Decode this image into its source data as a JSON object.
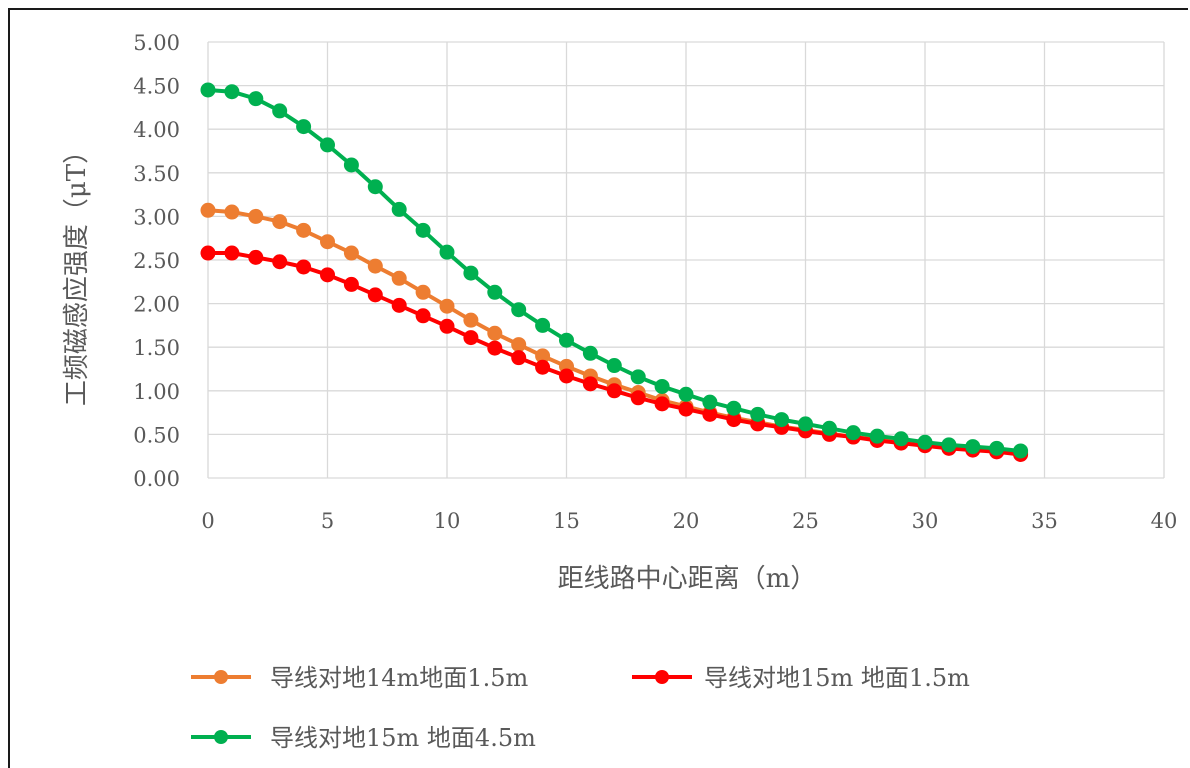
{
  "chart_data": {
    "type": "line",
    "title": "",
    "xlabel": "距线路中心距离（m）",
    "ylabel": "工频磁感应强度（μT）",
    "xlim": [
      0,
      40
    ],
    "ylim": [
      0,
      5
    ],
    "xticks": [
      "0",
      "5",
      "10",
      "15",
      "20",
      "25",
      "30",
      "35",
      "40"
    ],
    "yticks": [
      "0.00",
      "0.50",
      "1.00",
      "1.50",
      "2.00",
      "2.50",
      "3.00",
      "3.50",
      "4.00",
      "4.50",
      "5.00"
    ],
    "grid": true,
    "legend_position": "bottom",
    "x": [
      0,
      1,
      2,
      3,
      4,
      5,
      6,
      7,
      8,
      9,
      10,
      11,
      12,
      13,
      14,
      15,
      16,
      17,
      18,
      19,
      20,
      21,
      22,
      23,
      24,
      25,
      26,
      27,
      28,
      29,
      30,
      31,
      32,
      33,
      34
    ],
    "series": [
      {
        "name": "导线对地14m地面1.5m",
        "color": "#ED7D31",
        "values": [
          3.07,
          3.05,
          3.0,
          2.94,
          2.84,
          2.71,
          2.58,
          2.43,
          2.29,
          2.13,
          1.97,
          1.81,
          1.66,
          1.53,
          1.4,
          1.28,
          1.17,
          1.07,
          0.98,
          0.89,
          0.82,
          0.75,
          0.69,
          0.64,
          0.59,
          0.55,
          0.51,
          0.47,
          0.44,
          0.41,
          0.38,
          0.35,
          0.33,
          0.31,
          0.29
        ]
      },
      {
        "name": "导线对地15m 地面1.5m",
        "color": "#FF0000",
        "values": [
          2.58,
          2.58,
          2.53,
          2.48,
          2.42,
          2.33,
          2.22,
          2.1,
          1.98,
          1.86,
          1.74,
          1.61,
          1.49,
          1.38,
          1.27,
          1.17,
          1.08,
          1.0,
          0.92,
          0.85,
          0.79,
          0.73,
          0.67,
          0.62,
          0.58,
          0.54,
          0.5,
          0.47,
          0.43,
          0.4,
          0.37,
          0.34,
          0.32,
          0.3,
          0.27
        ]
      },
      {
        "name": "导线对地15m 地面4.5m",
        "color": "#00B050",
        "values": [
          4.45,
          4.43,
          4.35,
          4.21,
          4.03,
          3.82,
          3.59,
          3.34,
          3.08,
          2.84,
          2.59,
          2.35,
          2.13,
          1.93,
          1.75,
          1.58,
          1.43,
          1.29,
          1.16,
          1.05,
          0.96,
          0.87,
          0.8,
          0.73,
          0.67,
          0.62,
          0.57,
          0.52,
          0.48,
          0.45,
          0.41,
          0.38,
          0.36,
          0.34,
          0.31
        ]
      }
    ]
  }
}
